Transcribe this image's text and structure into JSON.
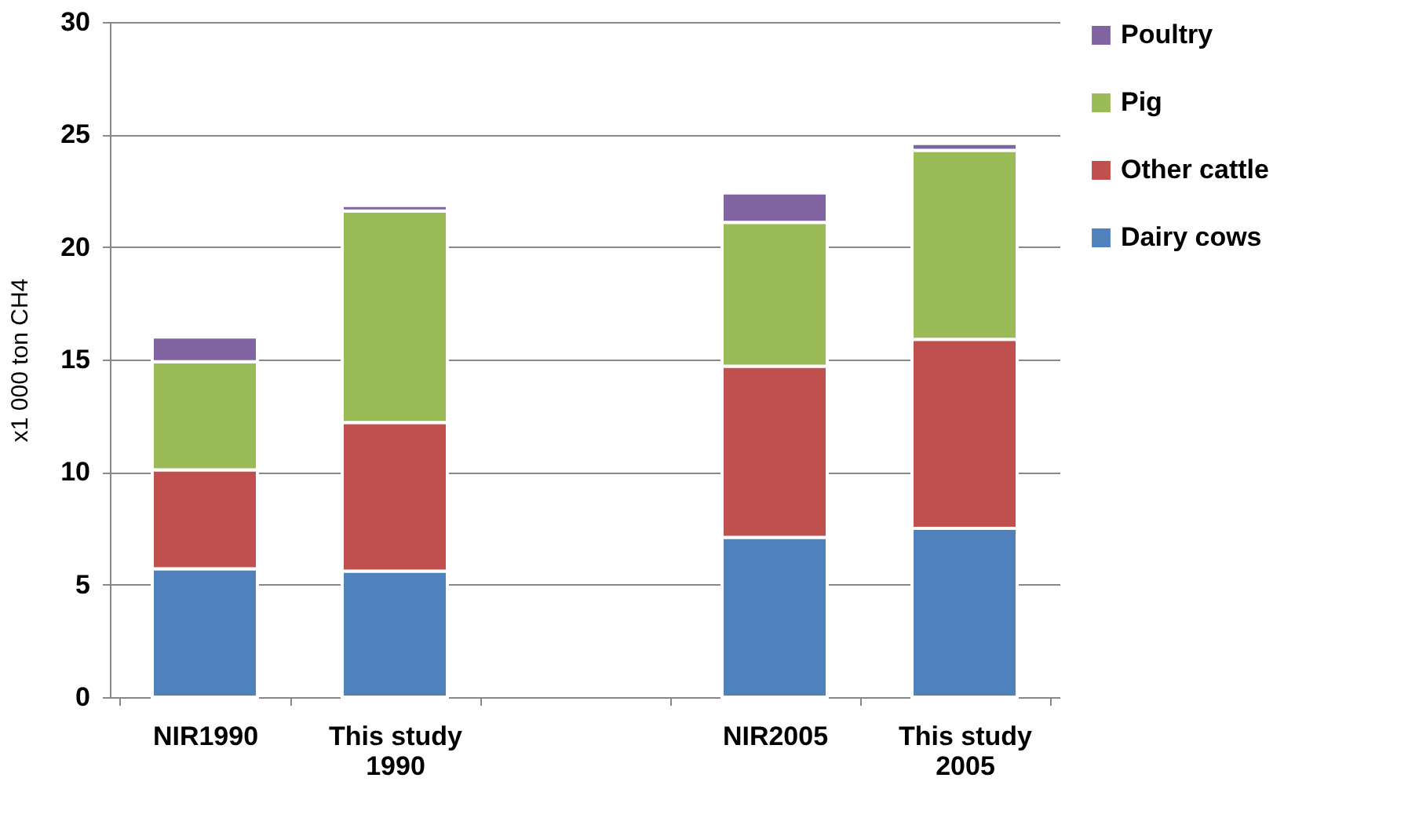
{
  "chart_data": {
    "type": "bar",
    "stacked": true,
    "ylabel": "x1 000 ton CH4",
    "categories": [
      "NIR1990",
      "This study 1990",
      null,
      "NIR2005",
      "This study 2005"
    ],
    "series": [
      {
        "name": "Dairy cows",
        "color": "#4f81bd",
        "values": [
          5.7,
          5.6,
          null,
          7.1,
          7.5
        ]
      },
      {
        "name": "Other cattle",
        "color": "#c0504d",
        "values": [
          4.4,
          6.6,
          null,
          7.6,
          8.4
        ]
      },
      {
        "name": "Pig",
        "color": "#9bbb59",
        "values": [
          4.8,
          9.4,
          null,
          6.4,
          8.4
        ]
      },
      {
        "name": "Poultry",
        "color": "#8064a2",
        "values": [
          1.1,
          0.25,
          null,
          1.3,
          0.3
        ]
      }
    ],
    "ylim": [
      0,
      30
    ],
    "yticks": [
      0,
      5,
      10,
      15,
      20,
      25,
      30
    ],
    "grid": "y",
    "legend": "right"
  }
}
